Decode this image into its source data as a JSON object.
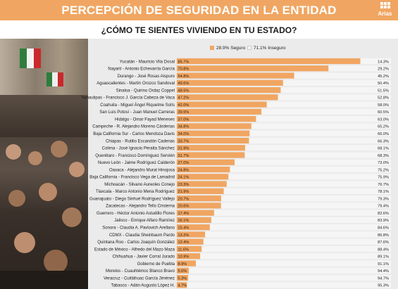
{
  "header": {
    "title": "PERCEPCIÓN DE SEGURIDAD EN LA ENTIDAD",
    "subtitle": "¿CÓMO TE SIENTES VIVIENDO EN TU ESTADO?",
    "logo_text": "Arias",
    "colors": {
      "bar": "#f0a662",
      "text": "#ffffff"
    }
  },
  "chart_data": {
    "type": "bar",
    "orientation": "horizontal",
    "stacked": true,
    "xlim": [
      0,
      100
    ],
    "grid": false,
    "legend_position": "top",
    "legend": [
      "28.9% Seguro",
      "71.1% Inseguro"
    ],
    "categories": [
      "Yucatán - Mauricio Vila Dosal",
      "Nayarit - Antonio Echevarría García",
      "Durango - José Rosas Aispuro",
      "Aguascalientes - Martín Orozco Sandoval",
      "Sinaloa - Quirino Ordaz Coppel",
      "Tamaulipas - Francisco J. García Cabeza de Vaca",
      "Coahuila - Miguel Ángel Riquelme Solís",
      "San Luis Potosí - Juan Manuel Carreras",
      "Hidalgo - Omar Fayad Meneses",
      "Campeche - R. Alejandro Moreno Cárdenas",
      "Baja California Sur - Carlos Mendoza Davis",
      "Chiapas - Rutilio Escandón Cadenas",
      "Colima - José Ignacio Peralta Sánchez",
      "Querétaro - Francisco Domínguez Servién",
      "Nuevo León - Jaime Rodríguez Calderón",
      "Oaxaca - Alejandro Murat Hinojosa",
      "Baja California - Francisco Vega de Lamadrid",
      "Michoacán - Silvano Aureoles Conejo",
      "Tlaxcala - Marco Antonio Mena Rodríguez",
      "Guanajuato - Diego Sinhué Rodríguez Vallejo",
      "Zacatecas - Alejandro Tello Cristerna",
      "Guerrero - Héctor Antonio Astudillo Flores",
      "Jalisco - Enrique Alfaro Ramírez",
      "Sonora - Claudia A. Pavlovich Arellano",
      "CDMX - Claudia Sheinbaum Pardo",
      "Quintana Roo - Carlos Joaquín González",
      "Estado de México - Alfredo del Mazo Maza",
      "Chihuahua - Javier Corral Jurado",
      "Gobierno de Puebla",
      "Morelos - Cuauhtémoc Blanco Bravo",
      "Veracruz - Cuitláhuac García Jiménez",
      "Tabasco - Adán Augusto López H."
    ],
    "series": [
      {
        "name": "28.9% Seguro",
        "color": "#f0a662",
        "values": [
          85.7,
          70.8,
          54.8,
          49.6,
          48.5,
          47.2,
          42.0,
          39.5,
          37.0,
          34.8,
          34.0,
          33.7,
          31.9,
          31.7,
          27.0,
          24.8,
          24.1,
          23.3,
          21.9,
          20.7,
          20.6,
          17.4,
          16.1,
          15.4,
          13.2,
          12.4,
          11.6,
          10.9,
          8.9,
          5.6,
          5.3,
          4.7
        ],
        "labels": [
          "85.7%",
          "70.8%",
          "54.8%",
          "49.6%",
          "48.5%",
          "47.2%",
          "42.0%",
          "39.5%",
          "37.0%",
          "34.8%",
          "34.0%",
          "33.7%",
          "31.9%",
          "31.7%",
          "27.0%",
          "24.8%",
          "24.1%",
          "23.3%",
          "21.9%",
          "20.7%",
          "20.6%",
          "17.4%",
          "16.1%",
          "15.4%",
          "13.2%",
          "12.4%",
          "11.6%",
          "10.9%",
          "8.9%",
          "5.6%",
          "5.3%",
          "4.7%"
        ]
      },
      {
        "name": "71.1% Inseguro",
        "color": "#f5f5f5",
        "values": [
          14.3,
          29.2,
          45.2,
          50.4,
          51.5,
          52.8,
          58.0,
          60.5,
          63.0,
          65.2,
          66.0,
          66.3,
          68.1,
          68.3,
          73.0,
          75.2,
          75.9,
          76.7,
          78.1,
          79.3,
          79.4,
          82.6,
          83.9,
          84.6,
          86.8,
          87.6,
          88.4,
          89.1,
          91.1,
          94.4,
          94.7,
          95.3
        ],
        "labels": [
          "14.3%",
          "29.2%",
          "45.2%",
          "50.4%",
          "51.5%",
          "52.8%",
          "58.0%",
          "60.5%",
          "63.0%",
          "65.2%",
          "66.0%",
          "66.3%",
          "68.1%",
          "68.3%",
          "73.0%",
          "75.2%",
          "75.9%",
          "76.7%",
          "78.1%",
          "79.3%",
          "79.4%",
          "82.6%",
          "83.9%",
          "84.6%",
          "86.8%",
          "87.6%",
          "88.4%",
          "89.1%",
          "91.1%",
          "94.4%",
          "94.7%",
          "95.3%"
        ]
      }
    ]
  }
}
